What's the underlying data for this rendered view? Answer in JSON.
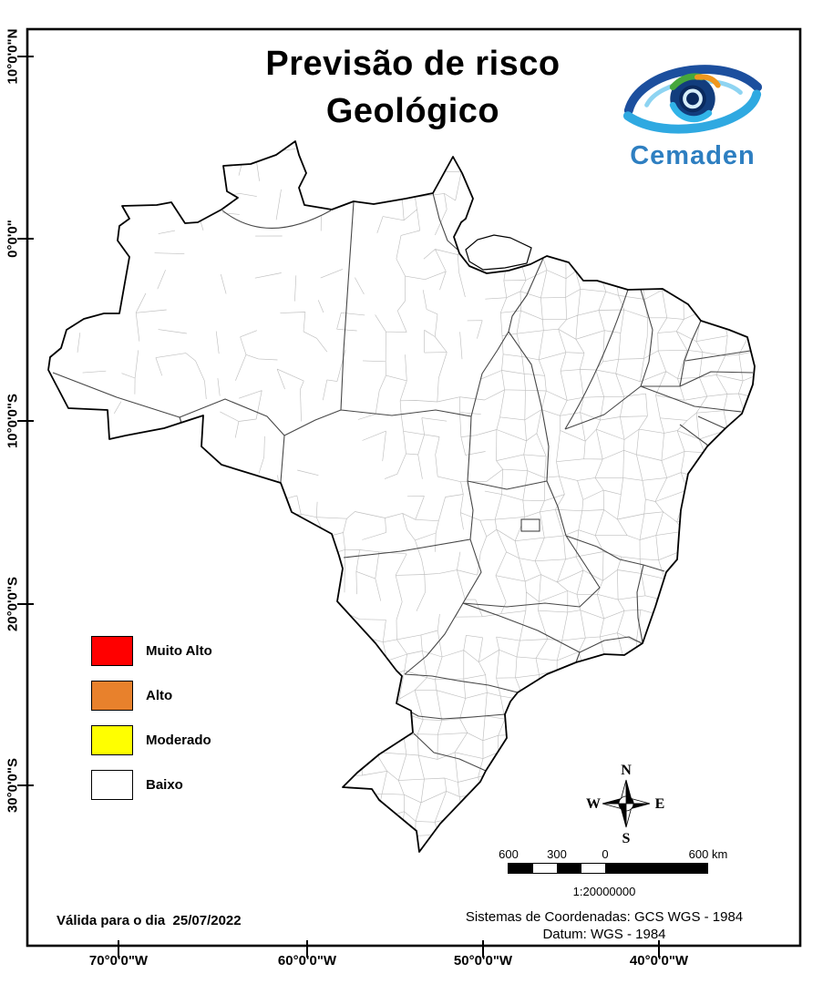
{
  "title": {
    "line1": "Previsão de risco",
    "line2": "Geológico"
  },
  "logo": {
    "wordmark": "Cemaden",
    "brand_color": "#2e7fc1"
  },
  "legend": {
    "items": [
      {
        "label": "Muito Alto",
        "color": "#ff0000"
      },
      {
        "label": "Alto",
        "color": "#e8812c"
      },
      {
        "label": "Moderado",
        "color": "#ffff00"
      },
      {
        "label": "Baixo",
        "color": "#ffffff"
      }
    ]
  },
  "compass": {
    "north": "N",
    "south": "S",
    "east": "E",
    "west": "W"
  },
  "scalebar": {
    "labels": [
      "600",
      "300",
      "0",
      "600 km"
    ],
    "ratio": "1:20000000"
  },
  "validity_text": "Válida para o dia  25/07/2022",
  "coordinate_system": {
    "line1": "Sistemas de Coordenadas: GCS WGS - 1984",
    "line2": "Datum: WGS - 1984"
  },
  "axes": {
    "x_labels": [
      "70°0'0\"W",
      "60°0'0\"W",
      "50°0'0\"W",
      "40°0'0\"W"
    ],
    "y_labels": [
      "10°0'0\"N",
      "0°0'0\"",
      "10°0'0\"S",
      "20°0'0\"S",
      "30°0'0\"S"
    ]
  }
}
